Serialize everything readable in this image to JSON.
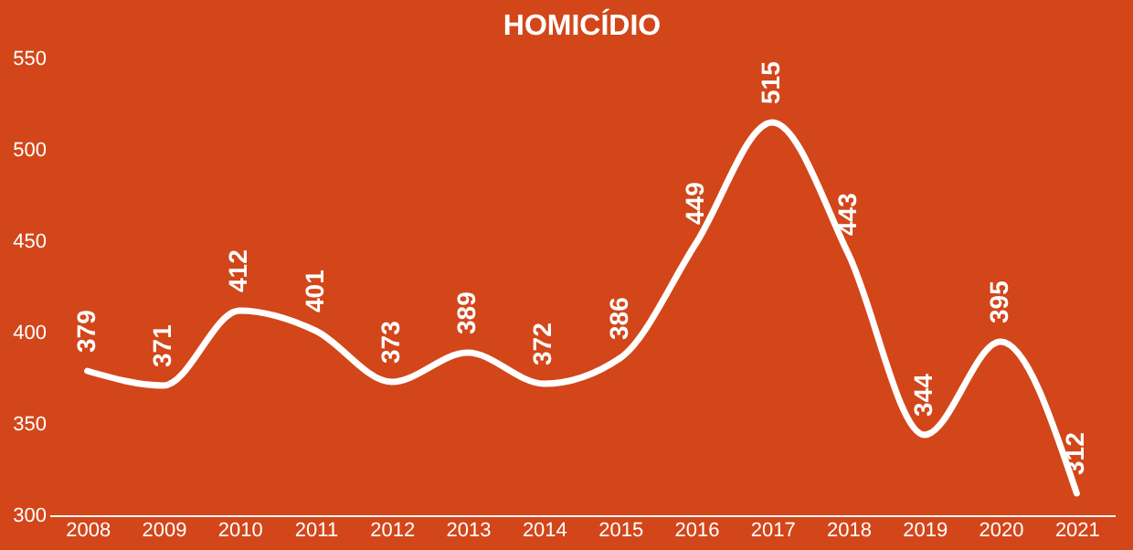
{
  "chart_data": {
    "type": "line",
    "title": "HOMICÍDIO",
    "categories": [
      "2008",
      "2009",
      "2010",
      "2011",
      "2012",
      "2013",
      "2014",
      "2015",
      "2016",
      "2017",
      "2018",
      "2019",
      "2020",
      "2021"
    ],
    "series": [
      {
        "color": "#ffffff",
        "values": [
          379,
          371,
          412,
          401,
          373,
          389,
          372,
          386,
          449,
          515,
          443,
          344,
          395,
          312
        ]
      }
    ],
    "ylim": [
      300,
      550
    ],
    "yticks": [
      300,
      350,
      400,
      450,
      500,
      550
    ],
    "grid": false,
    "data_labels": true,
    "legend": false,
    "marker": "none",
    "line_style": "solid"
  }
}
